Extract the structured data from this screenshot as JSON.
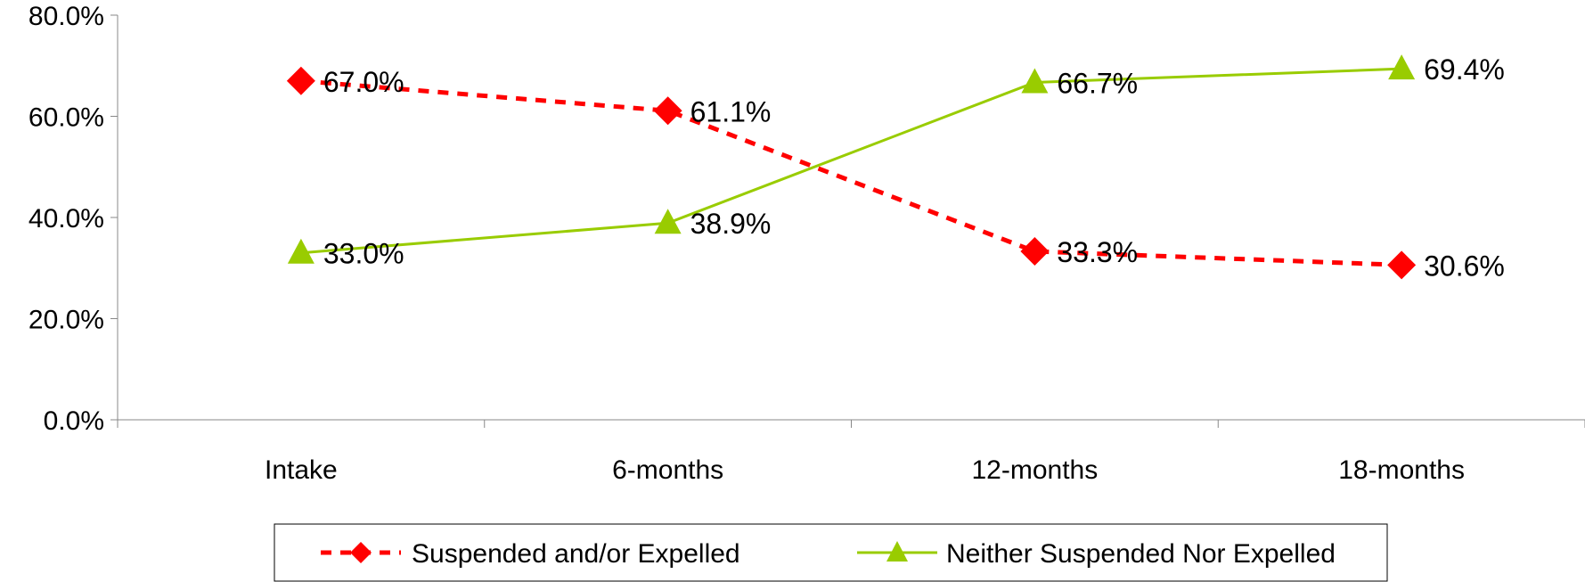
{
  "chart_data": {
    "type": "line",
    "categories": [
      "Intake",
      "6-months",
      "12-months",
      "18-months"
    ],
    "ylim": [
      0,
      80
    ],
    "y_ticks": [
      0,
      20,
      40,
      60,
      80
    ],
    "y_tick_labels": [
      "0.0%",
      "20.0%",
      "40.0%",
      "60.0%",
      "80.0%"
    ],
    "grid": false,
    "legend_position": "bottom",
    "series": [
      {
        "name": "Suspended and/or Expelled",
        "values": [
          67.0,
          61.1,
          33.3,
          30.6
        ],
        "labels": [
          "67.0%",
          "61.1%",
          "33.3%",
          "30.6%"
        ],
        "color": "#ff0000",
        "marker": "diamond",
        "line_style": "dashed"
      },
      {
        "name": "Neither Suspended Nor Expelled",
        "values": [
          33.0,
          38.9,
          66.7,
          69.4
        ],
        "labels": [
          "33.0%",
          "38.9%",
          "66.7%",
          "69.4%"
        ],
        "color": "#99cc00",
        "marker": "triangle",
        "line_style": "solid"
      }
    ]
  }
}
